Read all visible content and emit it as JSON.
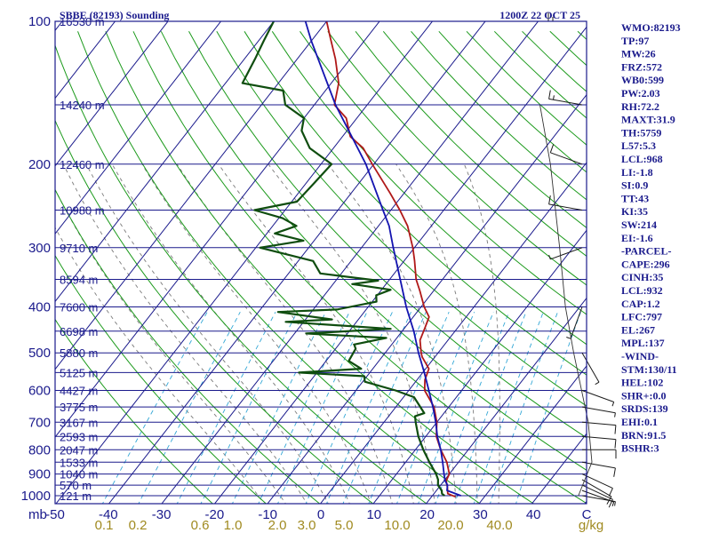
{
  "header": {
    "title": "SBBE (82193) Sounding",
    "time": "1200Z 22 OCT 25"
  },
  "colors": {
    "frame": "#1a1a8c",
    "isobar": "#1a1a8c",
    "isotherm": "#1a1a8c",
    "dry_adiabat": "#1c9a1c",
    "moist_adiabat": "#7a7a7a",
    "mixing_ratio": "#33a7d6",
    "temperature": "#b01818",
    "dewpoint": "#0f4d0f",
    "parcel": "#1414b0",
    "wind": "#1a1a1a",
    "mixing_label": "#a08a20",
    "background": "#ffffff"
  },
  "indices": [
    "WMO:82193",
    "TP:97",
    "MW:26",
    "FRZ:572",
    "WB0:599",
    "PW:2.03",
    "RH:72.2",
    "MAXT:31.9",
    "TH:5759",
    "L57:5.3",
    "LCL:968",
    "LI:-1.8",
    "SI:0.9",
    "TT:43",
    "KI:35",
    "SW:214",
    "EI:-1.6",
    "-PARCEL-",
    "CAPE:296",
    "CINH:35",
    "LCL:932",
    "CAP:1.2",
    "LFC:797",
    "EL:267",
    "MPL:137",
    "-WIND-",
    "STM:130/11",
    "HEL:102",
    "SHR+:0.0",
    "SRDS:139",
    "EHI:0.1",
    "BRN:91.5",
    "BSHR:3"
  ],
  "chart_data": {
    "type": "line",
    "title": "SBBE (82193) Sounding",
    "xlabel": "",
    "ylabel": "",
    "xlim": [
      -50,
      50
    ],
    "ylim": [
      1050,
      100
    ],
    "y_scale": "log",
    "skewed_temperature_axis": true,
    "grid": true,
    "pressure_ticks": [
      100,
      200,
      300,
      400,
      500,
      600,
      700,
      800,
      900,
      1000
    ],
    "pressure_unit_label": "mb",
    "temperature_ticks": [
      -50,
      -40,
      -30,
      -20,
      -10,
      0,
      10,
      20,
      30,
      40,
      50
    ],
    "temperature_tick_labels": [
      "-50",
      "-40",
      "-30",
      "-20",
      "-10",
      "0",
      "10",
      "20",
      "30",
      "40",
      "C"
    ],
    "mixing_ratio_ticks": [
      "0.1",
      "0.2",
      "0.6",
      "1.0",
      "2.0",
      "3.0",
      "5.0",
      "10.0",
      "20.0",
      "40.0",
      "g/kg"
    ],
    "height_ticks": [
      {
        "p": 100,
        "label": "16530 m"
      },
      {
        "p": 150,
        "label": "14240 m"
      },
      {
        "p": 200,
        "label": "12460 m"
      },
      {
        "p": 250,
        "label": "10980 m"
      },
      {
        "p": 300,
        "label": "9710 m"
      },
      {
        "p": 350,
        "label": "8594 m"
      },
      {
        "p": 400,
        "label": "7600 m"
      },
      {
        "p": 450,
        "label": "6698 m"
      },
      {
        "p": 500,
        "label": "5880 m"
      },
      {
        "p": 550,
        "label": "5125 m"
      },
      {
        "p": 600,
        "label": "4427 m"
      },
      {
        "p": 650,
        "label": "3775 m"
      },
      {
        "p": 700,
        "label": "3167 m"
      },
      {
        "p": 750,
        "label": "2593 m"
      },
      {
        "p": 800,
        "label": "2047 m"
      },
      {
        "p": 850,
        "label": "1533 m"
      },
      {
        "p": 900,
        "label": "1040 m"
      },
      {
        "p": 950,
        "label": "570 m"
      },
      {
        "p": 1000,
        "label": "121 m"
      }
    ],
    "series": [
      {
        "key": "temperature",
        "points": [
          {
            "p": 1005,
            "t": 24.5
          },
          {
            "p": 990,
            "t": 22.6
          },
          {
            "p": 960,
            "t": 21.6
          },
          {
            "p": 930,
            "t": 20.4
          },
          {
            "p": 900,
            "t": 20.0
          },
          {
            "p": 850,
            "t": 17.8
          },
          {
            "p": 800,
            "t": 14.8
          },
          {
            "p": 750,
            "t": 12.0
          },
          {
            "p": 700,
            "t": 10.0
          },
          {
            "p": 650,
            "t": 7.2
          },
          {
            "p": 600,
            "t": 3.0
          },
          {
            "p": 570,
            "t": 1.5
          },
          {
            "p": 540,
            "t": 0.6
          },
          {
            "p": 510,
            "t": -2.4
          },
          {
            "p": 500,
            "t": -3.2
          },
          {
            "p": 470,
            "t": -5.3
          },
          {
            "p": 445,
            "t": -6.1
          },
          {
            "p": 420,
            "t": -7.0
          },
          {
            "p": 400,
            "t": -9.4
          },
          {
            "p": 370,
            "t": -12.6
          },
          {
            "p": 350,
            "t": -15.0
          },
          {
            "p": 320,
            "t": -18.0
          },
          {
            "p": 300,
            "t": -20.3
          },
          {
            "p": 270,
            "t": -24.5
          },
          {
            "p": 250,
            "t": -28.3
          },
          {
            "p": 230,
            "t": -32.7
          },
          {
            "p": 200,
            "t": -40.3
          },
          {
            "p": 185,
            "t": -44.4
          },
          {
            "p": 175,
            "t": -48.5
          },
          {
            "p": 160,
            "t": -52.0
          },
          {
            "p": 150,
            "t": -56.2
          },
          {
            "p": 135,
            "t": -58.6
          },
          {
            "p": 120,
            "t": -62.8
          },
          {
            "p": 108,
            "t": -67.0
          },
          {
            "p": 100,
            "t": -70.0
          }
        ]
      },
      {
        "key": "dewpoint",
        "points": [
          {
            "p": 1000,
            "t": 22.3
          },
          {
            "p": 990,
            "t": 21.5
          },
          {
            "p": 975,
            "t": 21.0
          },
          {
            "p": 950,
            "t": 19.5
          },
          {
            "p": 925,
            "t": 18.7
          },
          {
            "p": 900,
            "t": 17.5
          },
          {
            "p": 850,
            "t": 14.5
          },
          {
            "p": 800,
            "t": 11.5
          },
          {
            "p": 750,
            "t": 8.6
          },
          {
            "p": 700,
            "t": 6.0
          },
          {
            "p": 680,
            "t": 5.0
          },
          {
            "p": 670,
            "t": 6.3
          },
          {
            "p": 620,
            "t": 2.0
          },
          {
            "p": 600,
            "t": -2.5
          },
          {
            "p": 575,
            "t": -9.6
          },
          {
            "p": 560,
            "t": -10.5
          },
          {
            "p": 550,
            "t": -23.4
          },
          {
            "p": 540,
            "t": -12.2
          },
          {
            "p": 520,
            "t": -15.7
          },
          {
            "p": 490,
            "t": -16.2
          },
          {
            "p": 480,
            "t": -17.1
          },
          {
            "p": 465,
            "t": -12.0
          },
          {
            "p": 455,
            "t": -27.8
          },
          {
            "p": 445,
            "t": -12.5
          },
          {
            "p": 430,
            "t": -33.4
          },
          {
            "p": 425,
            "t": -25.0
          },
          {
            "p": 410,
            "t": -36.3
          },
          {
            "p": 405,
            "t": -25.5
          },
          {
            "p": 390,
            "t": -19.2
          },
          {
            "p": 378,
            "t": -20.2
          },
          {
            "p": 368,
            "t": -18.3
          },
          {
            "p": 358,
            "t": -26.4
          },
          {
            "p": 352,
            "t": -22.0
          },
          {
            "p": 340,
            "t": -34.0
          },
          {
            "p": 320,
            "t": -37.2
          },
          {
            "p": 300,
            "t": -49.2
          },
          {
            "p": 290,
            "t": -42.0
          },
          {
            "p": 280,
            "t": -48.5
          },
          {
            "p": 270,
            "t": -45.5
          },
          {
            "p": 260,
            "t": -49.3
          },
          {
            "p": 250,
            "t": -55.8
          },
          {
            "p": 240,
            "t": -49.0
          },
          {
            "p": 220,
            "t": -48.5
          },
          {
            "p": 200,
            "t": -48.0
          },
          {
            "p": 185,
            "t": -54.5
          },
          {
            "p": 170,
            "t": -58.6
          },
          {
            "p": 160,
            "t": -60.0
          },
          {
            "p": 150,
            "t": -65.5
          },
          {
            "p": 140,
            "t": -68.0
          },
          {
            "p": 135,
            "t": -76.8
          },
          {
            "p": 120,
            "t": -78.0
          },
          {
            "p": 110,
            "t": -79.0
          },
          {
            "p": 100,
            "t": -80.0
          }
        ]
      },
      {
        "key": "parcel",
        "points": [
          {
            "p": 1000,
            "t": 25.4
          },
          {
            "p": 975,
            "t": 22.0
          },
          {
            "p": 950,
            "t": 21.3
          },
          {
            "p": 930,
            "t": 20.2
          },
          {
            "p": 900,
            "t": 19.0
          },
          {
            "p": 850,
            "t": 17.0
          },
          {
            "p": 800,
            "t": 14.8
          },
          {
            "p": 750,
            "t": 12.2
          },
          {
            "p": 700,
            "t": 9.8
          },
          {
            "p": 650,
            "t": 7.0
          },
          {
            "p": 600,
            "t": 3.8
          },
          {
            "p": 550,
            "t": 0.3
          },
          {
            "p": 500,
            "t": -3.7
          },
          {
            "p": 450,
            "t": -7.8
          },
          {
            "p": 400,
            "t": -12.8
          },
          {
            "p": 350,
            "t": -18.0
          },
          {
            "p": 300,
            "t": -24.0
          },
          {
            "p": 270,
            "t": -28.0
          },
          {
            "p": 250,
            "t": -31.5
          },
          {
            "p": 200,
            "t": -41.5
          },
          {
            "p": 150,
            "t": -56.0
          },
          {
            "p": 110,
            "t": -70.0
          },
          {
            "p": 100,
            "t": -74.0
          }
        ]
      }
    ],
    "winds": [
      {
        "p": 1000,
        "dir": 100,
        "kt": 5
      },
      {
        "p": 975,
        "dir": 110,
        "kt": 8
      },
      {
        "p": 950,
        "dir": 115,
        "kt": 10
      },
      {
        "p": 925,
        "dir": 120,
        "kt": 12
      },
      {
        "p": 900,
        "dir": 115,
        "kt": 12
      },
      {
        "p": 850,
        "dir": 100,
        "kt": 12
      },
      {
        "p": 800,
        "dir": 90,
        "kt": 10
      },
      {
        "p": 750,
        "dir": 95,
        "kt": 10
      },
      {
        "p": 700,
        "dir": 95,
        "kt": 10
      },
      {
        "p": 650,
        "dir": 100,
        "kt": 8
      },
      {
        "p": 600,
        "dir": 110,
        "kt": 5
      },
      {
        "p": 500,
        "dir": 150,
        "kt": 5
      },
      {
        "p": 400,
        "dir": 200,
        "kt": 5
      },
      {
        "p": 300,
        "dir": 250,
        "kt": 5
      },
      {
        "p": 250,
        "dir": 280,
        "kt": 10
      },
      {
        "p": 200,
        "dir": 290,
        "kt": 10
      },
      {
        "p": 150,
        "dir": 280,
        "kt": 15
      },
      {
        "p": 100,
        "dir": 270,
        "kt": 15
      }
    ],
    "hodograph_trace": [
      {
        "p": 1000,
        "dir": 100,
        "kt": 5
      },
      {
        "p": 850,
        "dir": 100,
        "kt": 12
      },
      {
        "p": 700,
        "dir": 95,
        "kt": 10
      },
      {
        "p": 500,
        "dir": 150,
        "kt": 5
      },
      {
        "p": 400,
        "dir": 200,
        "kt": 5
      },
      {
        "p": 300,
        "dir": 250,
        "kt": 5
      },
      {
        "p": 200,
        "dir": 290,
        "kt": 10
      },
      {
        "p": 150,
        "dir": 280,
        "kt": 15
      }
    ]
  }
}
